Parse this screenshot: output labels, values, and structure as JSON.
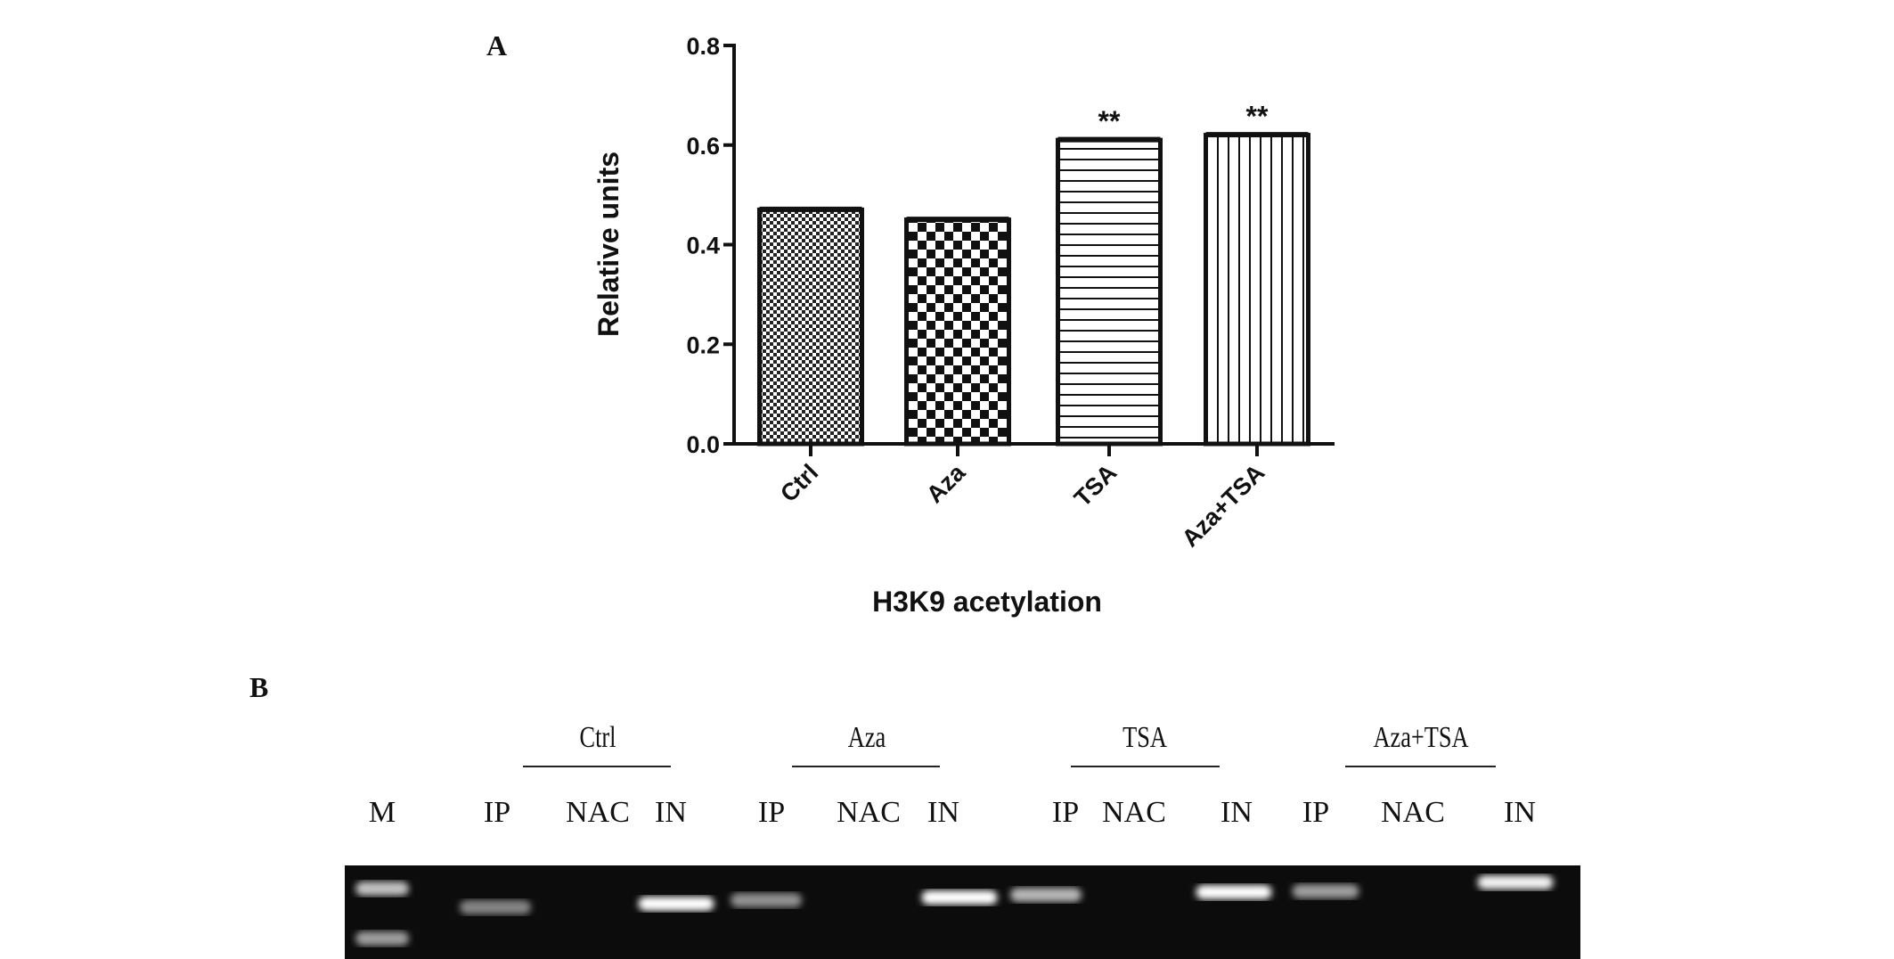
{
  "panel_a": {
    "label": "A"
  },
  "panel_b": {
    "label": "B",
    "groups": [
      "Ctrl",
      "Aza",
      "TSA",
      "Aza+TSA"
    ],
    "lanes": [
      "M",
      "IP",
      "NAC",
      "IN",
      "IP",
      "NAC",
      "IN",
      "IP",
      "NAC",
      "IN",
      "IP",
      "NAC",
      "IN"
    ],
    "gel_band_intensity": [
      {
        "lane": "M",
        "bands": 2
      },
      {
        "lane": "Ctrl IP",
        "level": "weak"
      },
      {
        "lane": "Ctrl NAC",
        "level": "none"
      },
      {
        "lane": "Ctrl IN",
        "level": "strong"
      },
      {
        "lane": "Aza IP",
        "level": "weak"
      },
      {
        "lane": "Aza NAC",
        "level": "none"
      },
      {
        "lane": "Aza IN",
        "level": "strong"
      },
      {
        "lane": "TSA IP",
        "level": "moderate"
      },
      {
        "lane": "TSA NAC",
        "level": "none"
      },
      {
        "lane": "TSA IN",
        "level": "strong"
      },
      {
        "lane": "Aza+TSA IP",
        "level": "moderate"
      },
      {
        "lane": "Aza+TSA NAC",
        "level": "none"
      },
      {
        "lane": "Aza+TSA IN",
        "level": "strong"
      }
    ]
  },
  "chart_data": {
    "type": "bar",
    "title": "",
    "xlabel": "H3K9 acetylation",
    "ylabel": "Relative units",
    "categories": [
      "Ctrl",
      "Aza",
      "TSA",
      "Aza+TSA"
    ],
    "values": [
      0.47,
      0.45,
      0.61,
      0.62
    ],
    "annotations": [
      "",
      "",
      "**",
      "**"
    ],
    "fill_patterns": [
      "fine-checker",
      "coarse-checker",
      "horizontal-lines",
      "vertical-lines"
    ],
    "ylim": [
      0,
      0.8
    ],
    "yticks": [
      "0.0",
      "0.2",
      "0.4",
      "0.6",
      "0.8"
    ],
    "grid": false,
    "bar_edge_color": "#111111"
  }
}
